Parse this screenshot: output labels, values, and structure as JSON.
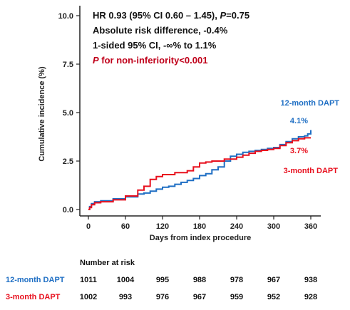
{
  "chart_data": {
    "type": "line",
    "ylabel": "Cumulative incidence (%)",
    "xlabel": "Days from index procedure",
    "xlim": [
      0,
      365
    ],
    "ylim": [
      0,
      10
    ],
    "x_ticks": [
      0,
      60,
      120,
      180,
      240,
      300,
      360
    ],
    "y_ticks": [
      "0.0",
      "2.5",
      "5.0",
      "7.5",
      "10.0"
    ],
    "y_tick_values": [
      0,
      2.5,
      5.0,
      7.5,
      10.0
    ],
    "annotations": {
      "hr_prefix": "HR 0.93 (95% CI 0.60 – 1.45), ",
      "hr_p_label": "P",
      "hr_p_value": "=0.75",
      "abs_risk": "Absolute risk difference, -0.4%",
      "one_sided_ci": "1-sided 95% CI, -∞% to 1.1%",
      "noninf_p_label": "P",
      "noninf_text": " for non-inferiority<0.001"
    },
    "series": [
      {
        "name": "12-month DAPT",
        "color": "#1f6fc4",
        "end_label": "4.1%",
        "points": [
          [
            0,
            0
          ],
          [
            2,
            0.15
          ],
          [
            5,
            0.3
          ],
          [
            10,
            0.4
          ],
          [
            20,
            0.45
          ],
          [
            40,
            0.55
          ],
          [
            60,
            0.65
          ],
          [
            80,
            0.8
          ],
          [
            90,
            0.85
          ],
          [
            100,
            0.95
          ],
          [
            110,
            1.05
          ],
          [
            120,
            1.15
          ],
          [
            130,
            1.2
          ],
          [
            140,
            1.3
          ],
          [
            150,
            1.4
          ],
          [
            160,
            1.5
          ],
          [
            170,
            1.6
          ],
          [
            180,
            1.75
          ],
          [
            190,
            1.85
          ],
          [
            200,
            2.05
          ],
          [
            210,
            2.2
          ],
          [
            220,
            2.5
          ],
          [
            230,
            2.75
          ],
          [
            240,
            2.85
          ],
          [
            250,
            2.95
          ],
          [
            260,
            3.0
          ],
          [
            270,
            3.05
          ],
          [
            280,
            3.1
          ],
          [
            290,
            3.15
          ],
          [
            300,
            3.2
          ],
          [
            310,
            3.35
          ],
          [
            320,
            3.5
          ],
          [
            330,
            3.65
          ],
          [
            340,
            3.75
          ],
          [
            350,
            3.8
          ],
          [
            355,
            3.9
          ],
          [
            360,
            4.1
          ]
        ]
      },
      {
        "name": "3-month DAPT",
        "color": "#e8101e",
        "end_label": "3.7%",
        "points": [
          [
            0,
            0
          ],
          [
            2,
            0.1
          ],
          [
            5,
            0.25
          ],
          [
            10,
            0.35
          ],
          [
            20,
            0.4
          ],
          [
            40,
            0.5
          ],
          [
            60,
            0.7
          ],
          [
            80,
            1.0
          ],
          [
            90,
            1.2
          ],
          [
            100,
            1.55
          ],
          [
            110,
            1.7
          ],
          [
            120,
            1.8
          ],
          [
            140,
            1.9
          ],
          [
            160,
            2.0
          ],
          [
            170,
            2.2
          ],
          [
            180,
            2.4
          ],
          [
            190,
            2.45
          ],
          [
            200,
            2.5
          ],
          [
            220,
            2.6
          ],
          [
            240,
            2.7
          ],
          [
            250,
            2.8
          ],
          [
            260,
            2.9
          ],
          [
            270,
            3.0
          ],
          [
            280,
            3.05
          ],
          [
            290,
            3.1
          ],
          [
            300,
            3.15
          ],
          [
            310,
            3.3
          ],
          [
            320,
            3.45
          ],
          [
            330,
            3.55
          ],
          [
            340,
            3.65
          ],
          [
            350,
            3.7
          ],
          [
            360,
            3.7
          ]
        ]
      }
    ]
  },
  "risk_table": {
    "header": "Number at risk",
    "rows": [
      {
        "label": "12-month DAPT",
        "color": "#1f6fc4",
        "values": [
          "1011",
          "1004",
          "995",
          "988",
          "978",
          "967",
          "938"
        ]
      },
      {
        "label": "3-month DAPT",
        "color": "#e8101e",
        "values": [
          "1002",
          "993",
          "976",
          "967",
          "959",
          "952",
          "928"
        ]
      }
    ]
  }
}
